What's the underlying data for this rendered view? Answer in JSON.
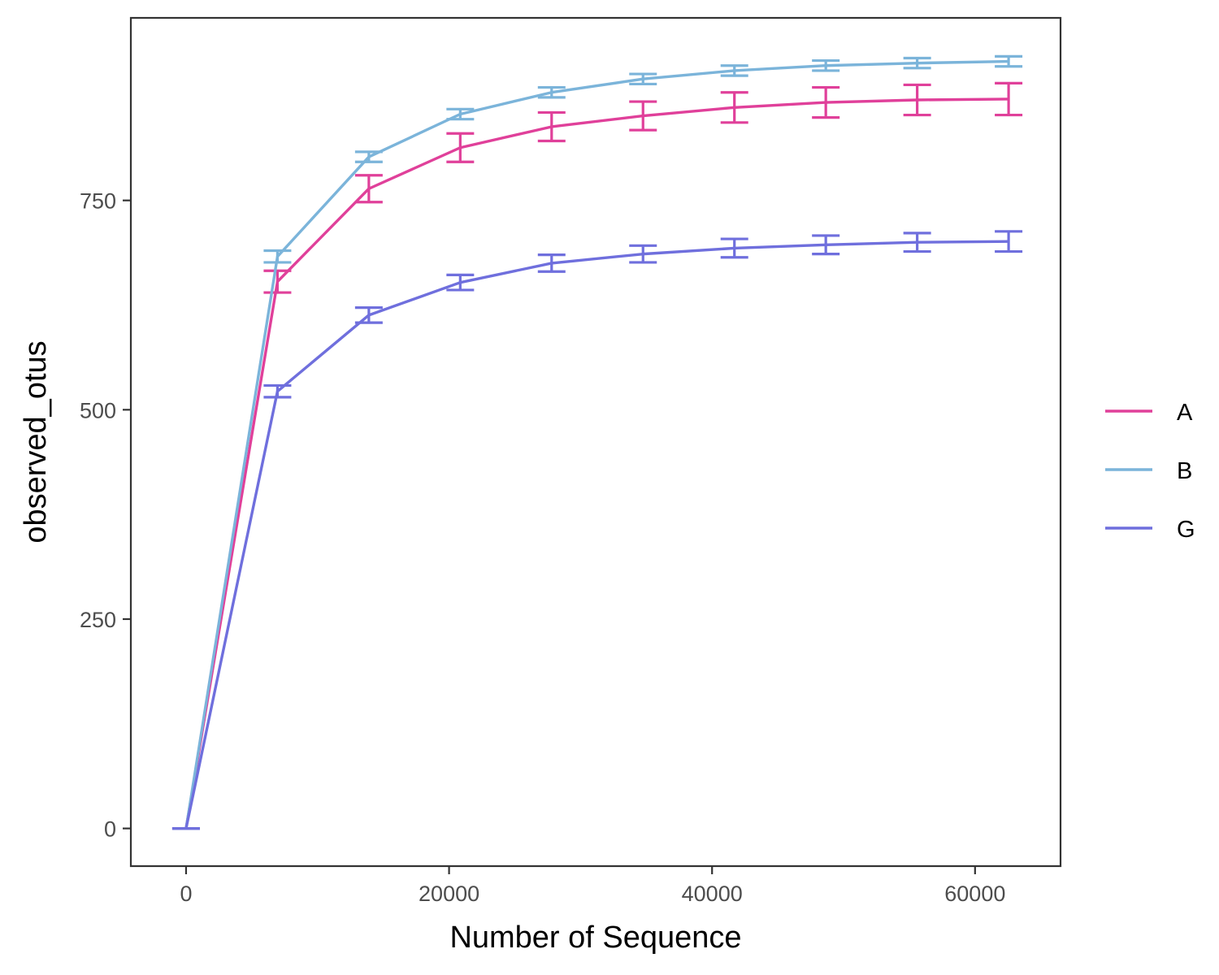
{
  "chart_data": {
    "type": "line",
    "title": "",
    "xlabel": "Number of Sequence",
    "ylabel": "observed_otus",
    "xlim": [
      -4200,
      66500
    ],
    "ylim": [
      -45,
      968
    ],
    "x_ticks": [
      0,
      20000,
      40000,
      60000
    ],
    "y_ticks": [
      0,
      250,
      500,
      750
    ],
    "grid": false,
    "error_bars": true,
    "legend": {
      "position": "right"
    },
    "x": [
      0,
      6950,
      13900,
      20850,
      27800,
      34750,
      41700,
      48650,
      55600,
      62550
    ],
    "series": [
      {
        "name": "A",
        "color": "#E0409A",
        "values": [
          0,
          653,
          764,
          813,
          838,
          851,
          861,
          867,
          870,
          871
        ],
        "errors": [
          0,
          13,
          16,
          17,
          17,
          17,
          18,
          18,
          18,
          19
        ]
      },
      {
        "name": "B",
        "color": "#7BB4DA",
        "values": [
          0,
          683,
          802,
          853,
          879,
          895,
          905,
          911,
          914,
          916
        ],
        "errors": [
          0,
          7,
          6,
          6,
          6,
          6,
          6,
          6,
          6,
          6
        ]
      },
      {
        "name": "G",
        "color": "#6F6FDD",
        "values": [
          0,
          522,
          613,
          652,
          675,
          686,
          693,
          697,
          700,
          701
        ],
        "errors": [
          0,
          7,
          9,
          9,
          10,
          10,
          11,
          11,
          11,
          12
        ]
      }
    ]
  }
}
